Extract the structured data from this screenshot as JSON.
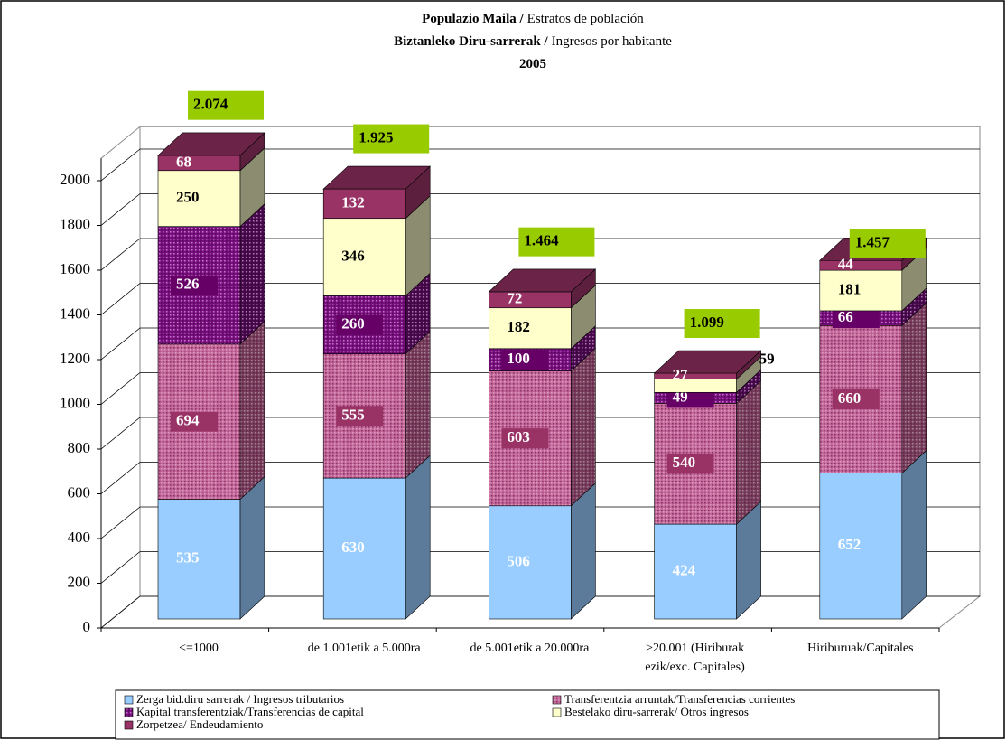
{
  "chart_data": {
    "type": "bar3d_stacked",
    "title_lines": [
      [
        "Populazio Maila /",
        "Estratos de población"
      ],
      [
        "Biztanleko Diru-sarrerak /",
        "Ingresos por habitante"
      ],
      [
        "2005"
      ]
    ],
    "categories": [
      [
        "<=1000"
      ],
      [
        "de 1.001etik a 5.000ra"
      ],
      [
        "de 5.001etik a 20.000ra"
      ],
      [
        ">20.001 (Hiriburak",
        "ezik/exc. Capitales)"
      ],
      [
        "Hiriburuak/Capitales"
      ]
    ],
    "series": [
      {
        "name": "Zerga bid.diru sarrerak / Ingresos tributarios",
        "color": "#99ccff",
        "values": [
          535,
          630,
          506,
          424,
          652
        ]
      },
      {
        "name": "Transferentzia arruntak/Transferencias corrientes",
        "color": "#c4679a",
        "values": [
          694,
          555,
          603,
          540,
          660
        ]
      },
      {
        "name": "Kapital transferentziak/Transferencias de capital",
        "color": "#7a1080",
        "values": [
          526,
          260,
          100,
          49,
          66
        ]
      },
      {
        "name": "Bestelako diru-sarrerak/ Otros ingresos",
        "color": "#ffffcc",
        "values": [
          250,
          346,
          182,
          59,
          181
        ]
      },
      {
        "name": "Zorpetzea/ Endeudamiento",
        "color": "#993366",
        "values": [
          68,
          132,
          72,
          27,
          44
        ]
      }
    ],
    "totals": {
      "values": [
        2074,
        1925,
        1464,
        1099,
        1457
      ],
      "value_labels": [
        "2.074",
        "1.925",
        "1.464",
        "1.099",
        "1.457"
      ],
      "color": "#99cc00"
    },
    "ylim": [
      0,
      2100
    ],
    "yticks": [
      0,
      200,
      400,
      600,
      800,
      1000,
      1200,
      1400,
      1600,
      1800,
      2000
    ],
    "grid": true
  }
}
